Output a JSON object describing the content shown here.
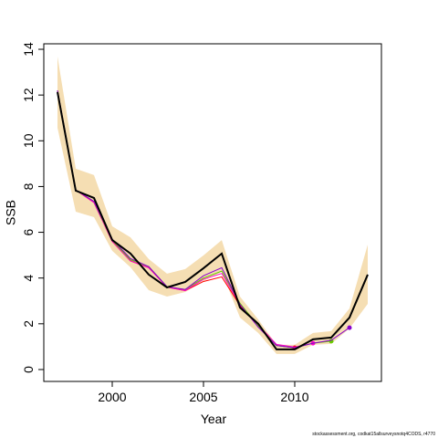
{
  "chart_data": {
    "type": "line",
    "xlabel": "Year",
    "ylabel": "SSB",
    "footnote": "stockassessment.org, codkat15allsurveysnotq4CODS, r4770",
    "x": [
      1997,
      1998,
      1999,
      2000,
      2001,
      2002,
      2003,
      2004,
      2005,
      2006,
      2007,
      2008,
      2009,
      2010,
      2011,
      2012,
      2013,
      2014
    ],
    "xlim": [
      1996.25,
      2014.75
    ],
    "xticks": [
      2000,
      2005,
      2010
    ],
    "ylim": [
      -0.52,
      14.24
    ],
    "yticks": [
      0,
      2,
      4,
      6,
      8,
      10,
      12,
      14
    ],
    "band": {
      "color": "#f5deb3",
      "upper": [
        13.68,
        8.78,
        8.5,
        6.26,
        5.78,
        4.83,
        4.19,
        4.39,
        4.99,
        5.66,
        3.19,
        2.19,
        1.08,
        1.08,
        1.6,
        1.68,
        2.67,
        5.46
      ],
      "lower": [
        10.57,
        6.9,
        6.66,
        5.19,
        4.47,
        3.47,
        3.19,
        3.39,
        3.87,
        4.27,
        2.27,
        1.6,
        0.68,
        0.68,
        1.08,
        1.12,
        1.8,
        2.87
      ]
    },
    "series": [
      {
        "color": "#ff0000",
        "values": [
          12.2,
          7.85,
          7.3,
          5.6,
          4.75,
          4.45,
          3.6,
          3.45,
          3.85,
          4.05,
          2.8,
          1.9,
          1.05,
          0.95,
          null,
          null,
          null,
          null
        ]
      },
      {
        "color": "#ff00cc",
        "values": [
          12.2,
          7.85,
          7.3,
          5.6,
          4.75,
          4.45,
          3.6,
          3.45,
          3.95,
          4.2,
          2.85,
          1.95,
          1.1,
          0.98,
          1.15,
          null,
          null,
          null
        ]
      },
      {
        "color": "#66cc00",
        "values": [
          12.2,
          7.85,
          7.35,
          5.65,
          4.8,
          4.5,
          3.62,
          3.5,
          4.0,
          4.3,
          2.9,
          1.9,
          1.05,
          0.95,
          1.15,
          1.24,
          null,
          null
        ]
      },
      {
        "color": "#8800cc",
        "values": [
          12.2,
          7.85,
          7.35,
          5.7,
          4.85,
          4.5,
          3.62,
          3.5,
          4.1,
          4.45,
          2.85,
          1.85,
          1.05,
          0.95,
          1.15,
          1.28,
          1.83,
          null
        ]
      },
      {
        "color": "#000000",
        "values": [
          12.13,
          7.82,
          7.5,
          5.66,
          5.07,
          4.15,
          3.59,
          3.83,
          4.43,
          5.07,
          2.71,
          2.0,
          0.88,
          0.88,
          1.32,
          1.4,
          2.27,
          4.15
        ]
      }
    ]
  }
}
